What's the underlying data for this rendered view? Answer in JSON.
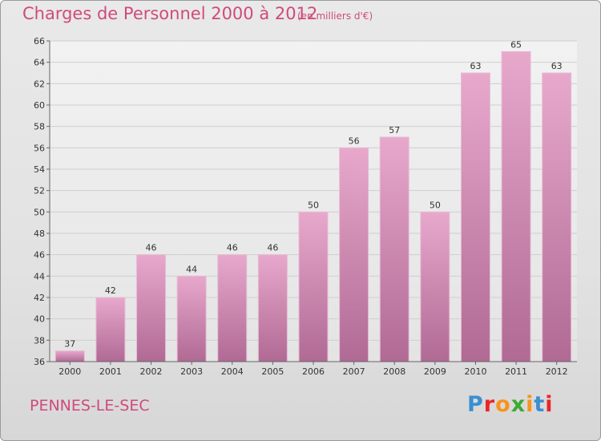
{
  "header": {
    "title": "Charges de Personnel 2000 à 2012",
    "subtitle": "(en milliers d'€)"
  },
  "footer": {
    "commune": "PENNES-LE-SEC",
    "logo_letters": [
      "P",
      "r",
      "o",
      "x",
      "i",
      "t",
      "i"
    ]
  },
  "colors": {
    "accent": "#d04a7c",
    "bar_light": "#e8a8cc",
    "bar_dark": "#b06a94",
    "logo_letters": [
      "#3a8fd0",
      "#e8262a",
      "#f7941d",
      "#3aaa35",
      "#f7941d",
      "#3a8fd0",
      "#e8262a"
    ]
  },
  "chart_data": {
    "type": "bar",
    "title": "Charges de Personnel 2000 à 2012",
    "subtitle": "(en milliers d'€)",
    "xlabel": "",
    "ylabel": "",
    "categories": [
      "2000",
      "2001",
      "2002",
      "2003",
      "2004",
      "2005",
      "2006",
      "2007",
      "2008",
      "2009",
      "2010",
      "2011",
      "2012"
    ],
    "values": [
      37,
      42,
      46,
      44,
      46,
      46,
      50,
      56,
      57,
      50,
      63,
      65,
      63
    ],
    "ylim": [
      36,
      66
    ],
    "yticks": [
      36,
      38,
      40,
      42,
      44,
      46,
      48,
      50,
      52,
      54,
      56,
      58,
      60,
      62,
      64,
      66
    ],
    "grid": true,
    "legend": "none"
  }
}
